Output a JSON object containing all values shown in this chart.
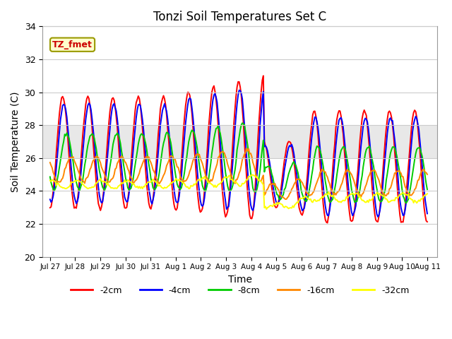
{
  "title": "Tonzi Soil Temperatures Set C",
  "xlabel": "Time",
  "ylabel": "Soil Temperature (C)",
  "ylim": [
    20,
    34
  ],
  "fig_bg_color": "#ffffff",
  "plot_bg_color": "#ffffff",
  "gray_band": [
    26,
    28
  ],
  "gray_band_color": "#e8e8e8",
  "series": [
    {
      "label": "-2cm",
      "color": "#ff0000",
      "phase_lag": 0.0,
      "amplitude": 4.0,
      "mean": 26.0
    },
    {
      "label": "-4cm",
      "color": "#0000ff",
      "phase_lag": 0.3,
      "amplitude": 3.5,
      "mean": 26.0
    },
    {
      "label": "-8cm",
      "color": "#00cc00",
      "phase_lag": 1.0,
      "amplitude": 2.0,
      "mean": 25.5
    },
    {
      "label": "-16cm",
      "color": "#ff8800",
      "phase_lag": 2.2,
      "amplitude": 0.9,
      "mean": 25.0
    },
    {
      "label": "-32cm",
      "color": "#ffff00",
      "phase_lag": 3.5,
      "amplitude": 0.28,
      "mean": 24.1
    }
  ],
  "annotation_text": "TZ_fmet",
  "tick_labels": [
    "Jul 27",
    "Jul 28",
    "Jul 29",
    "Jul 30",
    "Jul 31",
    "Aug 1",
    "Aug 2",
    "Aug 3",
    "Aug 4",
    "Aug 5",
    "Aug 6",
    "Aug 7",
    "Aug 8",
    "Aug 9",
    "Aug 10",
    "Aug 11"
  ],
  "grid_color": "#cccccc",
  "linewidth": 1.4,
  "n_days": 15,
  "n_points": 360
}
